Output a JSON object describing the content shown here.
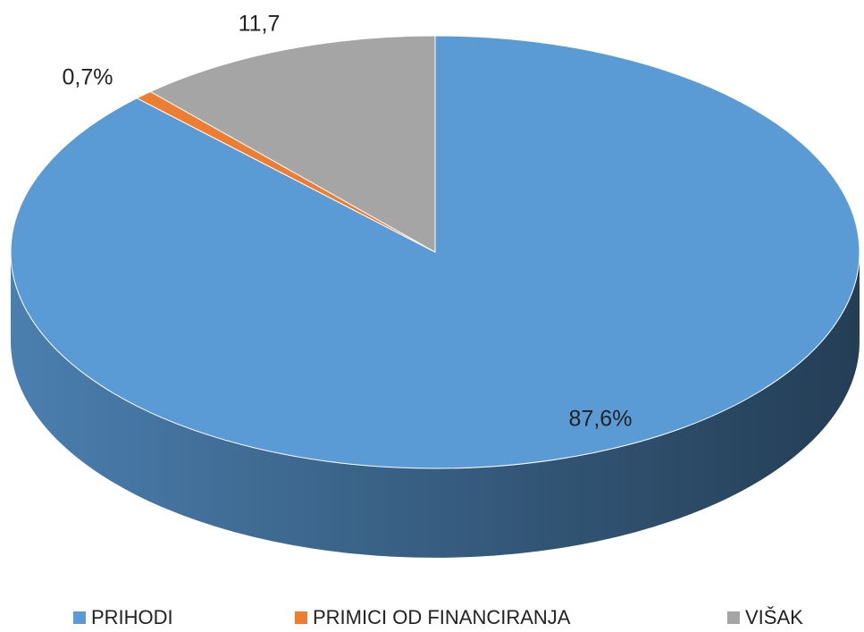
{
  "chart_data": {
    "type": "pie3d",
    "categories": [
      "PRIHODI",
      "PRIMICI  OD FINANCIRANJA",
      "VIŠAK"
    ],
    "values": [
      87.6,
      0.7,
      11.7
    ],
    "value_labels": [
      "87,6%",
      "0,7%",
      "11,7"
    ],
    "colors": [
      "#5b9bd5",
      "#ed7d31",
      "#a5a5a5"
    ],
    "legend": "bottom"
  }
}
